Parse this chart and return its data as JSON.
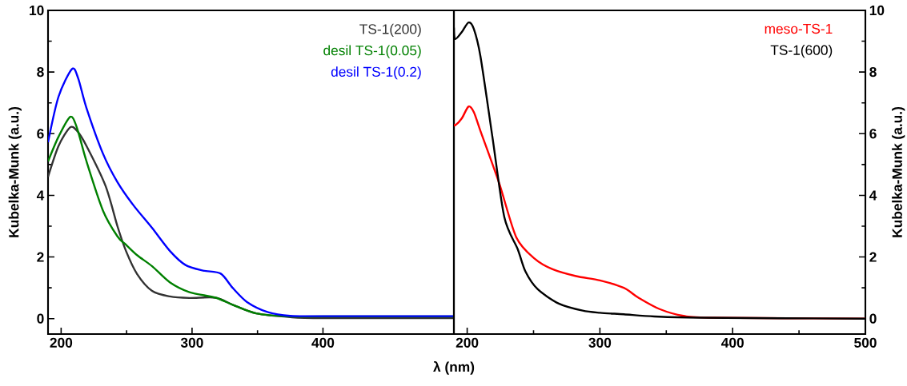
{
  "chart_data": [
    {
      "type": "line",
      "xlabel": "λ (nm)",
      "ylabel": "Kubelka-Munk (a.u.)",
      "xlim": [
        190,
        500
      ],
      "ylim": [
        -0.5,
        10
      ],
      "xticks": [
        200,
        300,
        400
      ],
      "yticks": [
        0,
        2,
        4,
        6,
        8,
        10
      ],
      "series": [
        {
          "name": "TS-1(200)",
          "color": "#333333",
          "x": [
            190,
            198,
            206.7,
            212,
            219.4,
            234,
            243,
            249.5,
            258,
            269.5,
            283,
            298,
            318,
            331,
            349,
            375,
            400,
            500
          ],
          "values": [
            4.6,
            5.6,
            6.2,
            6.1,
            5.6,
            4.3,
            3.0,
            2.2,
            1.45,
            0.9,
            0.72,
            0.67,
            0.68,
            0.45,
            0.17,
            0.05,
            0.02,
            0.02
          ]
        },
        {
          "name": "desil TS-1(0.05)",
          "color": "#008000",
          "x": [
            190,
            198,
            207,
            212,
            219.4,
            232,
            243,
            249.5,
            258,
            269.5,
            283,
            298,
            318,
            331,
            349,
            375,
            400,
            500
          ],
          "values": [
            5.1,
            5.9,
            6.55,
            6.2,
            5.1,
            3.5,
            2.67,
            2.4,
            2.06,
            1.7,
            1.18,
            0.86,
            0.68,
            0.45,
            0.17,
            0.07,
            0.07,
            0.07
          ]
        },
        {
          "name": "desil TS-1(0.2)",
          "color": "#0000ff",
          "x": [
            190,
            198,
            208.3,
            213,
            219.4,
            232,
            243,
            255,
            269.5,
            283,
            295,
            308.5,
            321.9,
            331,
            342,
            358,
            375,
            400,
            500
          ],
          "values": [
            5.72,
            7.2,
            8.1,
            7.8,
            6.83,
            5.35,
            4.43,
            3.69,
            2.94,
            2.2,
            1.74,
            1.56,
            1.46,
            1.0,
            0.54,
            0.21,
            0.09,
            0.08,
            0.08
          ]
        }
      ]
    },
    {
      "type": "line",
      "ylabel": "Kubelka-Munk (a.u.)",
      "xlim": [
        190,
        500
      ],
      "ylim": [
        -0.5,
        10
      ],
      "xticks": [
        200,
        300,
        400,
        500
      ],
      "yticks": [
        0,
        2,
        4,
        6,
        8,
        10
      ],
      "series": [
        {
          "name": "meso-TS-1",
          "color": "#ff0000",
          "x": [
            190,
            191,
            196,
            201,
            205,
            210,
            224,
            237,
            251,
            264,
            282,
            300,
            318,
            329,
            345,
            363,
            386,
            500
          ],
          "values": [
            6.32,
            6.27,
            6.5,
            6.88,
            6.7,
            6.09,
            4.41,
            2.64,
            1.94,
            1.61,
            1.38,
            1.24,
            1.0,
            0.68,
            0.31,
            0.09,
            0.03,
            0.0
          ]
        },
        {
          "name": "TS-1(600)",
          "color": "#000000",
          "x": [
            190,
            191,
            196,
            201,
            205,
            210,
            219,
            228,
            238,
            244,
            253,
            269,
            287,
            300,
            318,
            341,
            375,
            500
          ],
          "values": [
            9.44,
            9.07,
            9.3,
            9.61,
            9.4,
            8.51,
            5.9,
            3.29,
            2.26,
            1.52,
            0.96,
            0.49,
            0.26,
            0.19,
            0.14,
            0.07,
            0.03,
            0.0
          ]
        }
      ]
    }
  ]
}
